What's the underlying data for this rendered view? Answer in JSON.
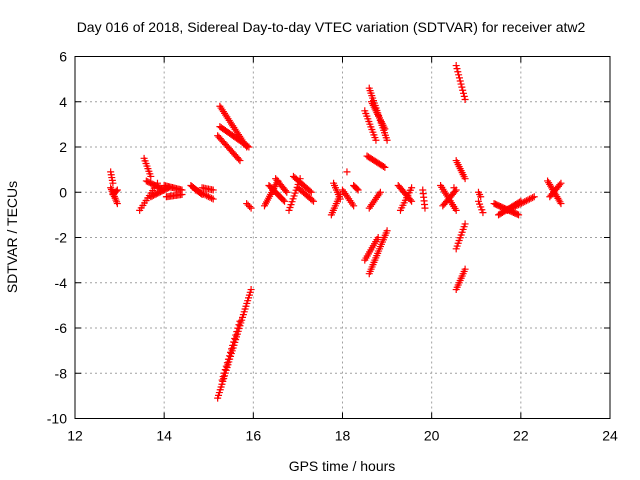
{
  "chart_data": {
    "type": "scatter",
    "title": "Day 016 of 2018, Sidereal Day-to-day VTEC variation (SDTVAR) for receiver atw2",
    "xlabel": "GPS time / hours",
    "ylabel": "SDTVAR / TECUs",
    "xlim": [
      12,
      24
    ],
    "ylim": [
      -10,
      6
    ],
    "xticks": [
      12,
      14,
      16,
      18,
      20,
      22,
      24
    ],
    "yticks": [
      -10,
      -8,
      -6,
      -4,
      -2,
      0,
      2,
      4,
      6
    ],
    "xtick_labels": [
      "12",
      "14",
      "16",
      "18",
      "20",
      "22",
      "24"
    ],
    "ytick_labels": [
      "-10",
      "-8",
      "-6",
      "-4",
      "-2",
      "0",
      "2",
      "4",
      "6"
    ],
    "grid": true,
    "marker": "+",
    "color": "#ff0000",
    "series": [
      {
        "name": "SDTVAR",
        "segments": [
          {
            "x0": 12.8,
            "y0": 0.9,
            "x1": 12.85,
            "y1": 0.4,
            "n": 5
          },
          {
            "x0": 12.8,
            "y0": 0.2,
            "x1": 12.95,
            "y1": -0.5,
            "n": 10
          },
          {
            "x0": 12.85,
            "y0": -0.1,
            "x1": 12.95,
            "y1": 0.1,
            "n": 5
          },
          {
            "x0": 13.55,
            "y0": 1.5,
            "x1": 13.7,
            "y1": 0.7,
            "n": 8
          },
          {
            "x0": 13.45,
            "y0": -0.8,
            "x1": 13.85,
            "y1": 0.4,
            "n": 12
          },
          {
            "x0": 13.6,
            "y0": 0.5,
            "x1": 14.0,
            "y1": 0.1,
            "n": 14
          },
          {
            "x0": 13.7,
            "y0": -0.2,
            "x1": 14.1,
            "y1": 0.2,
            "n": 14
          },
          {
            "x0": 14.0,
            "y0": 0.3,
            "x1": 14.4,
            "y1": 0.1,
            "n": 14
          },
          {
            "x0": 14.05,
            "y0": -0.2,
            "x1": 14.4,
            "y1": -0.1,
            "n": 12
          },
          {
            "x0": 14.6,
            "y0": 0.3,
            "x1": 14.85,
            "y1": -0.1,
            "n": 10
          },
          {
            "x0": 14.7,
            "y0": 0.1,
            "x1": 15.1,
            "y1": -0.3,
            "n": 12
          },
          {
            "x0": 14.85,
            "y0": 0.2,
            "x1": 15.1,
            "y1": 0.1,
            "n": 8
          },
          {
            "x0": 15.25,
            "y0": 3.8,
            "x1": 15.85,
            "y1": 2.0,
            "n": 24
          },
          {
            "x0": 15.25,
            "y0": 2.9,
            "x1": 15.9,
            "y1": 2.0,
            "n": 22
          },
          {
            "x0": 15.2,
            "y0": 2.5,
            "x1": 15.7,
            "y1": 1.4,
            "n": 18
          },
          {
            "x0": 15.85,
            "y0": -0.5,
            "x1": 15.95,
            "y1": -0.7,
            "n": 4
          },
          {
            "x0": 15.2,
            "y0": -9.1,
            "x1": 15.95,
            "y1": -4.3,
            "n": 40
          },
          {
            "x0": 15.3,
            "y0": -8.3,
            "x1": 15.7,
            "y1": -5.7,
            "n": 18
          },
          {
            "x0": 16.25,
            "y0": -0.6,
            "x1": 16.55,
            "y1": 0.5,
            "n": 14
          },
          {
            "x0": 16.35,
            "y0": 0.3,
            "x1": 16.7,
            "y1": -0.4,
            "n": 14
          },
          {
            "x0": 16.5,
            "y0": 0.6,
            "x1": 16.75,
            "y1": 0.0,
            "n": 10
          },
          {
            "x0": 16.8,
            "y0": -0.8,
            "x1": 17.05,
            "y1": 0.6,
            "n": 12
          },
          {
            "x0": 16.9,
            "y0": 0.7,
            "x1": 17.3,
            "y1": 0.0,
            "n": 14
          },
          {
            "x0": 17.0,
            "y0": 0.2,
            "x1": 17.35,
            "y1": -0.4,
            "n": 12
          },
          {
            "x0": 17.75,
            "y0": -1.0,
            "x1": 17.95,
            "y1": -0.1,
            "n": 10
          },
          {
            "x0": 17.8,
            "y0": 0.4,
            "x1": 17.95,
            "y1": -0.3,
            "n": 8
          },
          {
            "x0": 18.0,
            "y0": 0.1,
            "x1": 18.25,
            "y1": -0.6,
            "n": 10
          },
          {
            "x0": 18.1,
            "y0": 0.9,
            "x1": 18.12,
            "y1": 0.9,
            "n": 1
          },
          {
            "x0": 18.25,
            "y0": 0.3,
            "x1": 18.35,
            "y1": 0.1,
            "n": 5
          },
          {
            "x0": 18.5,
            "y0": 3.6,
            "x1": 18.75,
            "y1": 2.3,
            "n": 12
          },
          {
            "x0": 18.6,
            "y0": 4.6,
            "x1": 19.0,
            "y1": 2.3,
            "n": 22
          },
          {
            "x0": 18.65,
            "y0": 4.0,
            "x1": 18.95,
            "y1": 2.8,
            "n": 16
          },
          {
            "x0": 18.55,
            "y0": 1.6,
            "x1": 18.95,
            "y1": 1.1,
            "n": 14
          },
          {
            "x0": 18.5,
            "y0": -3.0,
            "x1": 18.8,
            "y1": -2.0,
            "n": 12
          },
          {
            "x0": 18.6,
            "y0": -3.6,
            "x1": 19.0,
            "y1": -1.7,
            "n": 20
          },
          {
            "x0": 18.6,
            "y0": -0.7,
            "x1": 18.85,
            "y1": 0.0,
            "n": 10
          },
          {
            "x0": 19.25,
            "y0": 0.3,
            "x1": 19.55,
            "y1": -0.4,
            "n": 12
          },
          {
            "x0": 19.3,
            "y0": -0.8,
            "x1": 19.55,
            "y1": 0.2,
            "n": 10
          },
          {
            "x0": 19.8,
            "y0": 0.1,
            "x1": 19.85,
            "y1": -0.7,
            "n": 6
          },
          {
            "x0": 20.2,
            "y0": 0.3,
            "x1": 20.55,
            "y1": -0.8,
            "n": 14
          },
          {
            "x0": 20.25,
            "y0": -0.6,
            "x1": 20.55,
            "y1": 0.1,
            "n": 12
          },
          {
            "x0": 20.5,
            "y0": 0.2,
            "x1": 20.52,
            "y1": 0.2,
            "n": 1
          },
          {
            "x0": 20.55,
            "y0": 5.6,
            "x1": 20.75,
            "y1": 4.1,
            "n": 12
          },
          {
            "x0": 20.55,
            "y0": 1.4,
            "x1": 20.75,
            "y1": 0.6,
            "n": 10
          },
          {
            "x0": 20.55,
            "y0": -2.5,
            "x1": 20.75,
            "y1": -1.4,
            "n": 10
          },
          {
            "x0": 20.55,
            "y0": -4.3,
            "x1": 20.75,
            "y1": -3.4,
            "n": 10
          },
          {
            "x0": 21.05,
            "y0": -0.4,
            "x1": 21.15,
            "y1": -0.9,
            "n": 5
          },
          {
            "x0": 21.05,
            "y0": 0.0,
            "x1": 21.1,
            "y1": -0.2,
            "n": 3
          },
          {
            "x0": 21.4,
            "y0": -0.5,
            "x1": 21.95,
            "y1": -1.0,
            "n": 20
          },
          {
            "x0": 21.5,
            "y0": -1.0,
            "x1": 22.0,
            "y1": -0.4,
            "n": 18
          },
          {
            "x0": 21.7,
            "y0": -0.8,
            "x1": 22.3,
            "y1": -0.2,
            "n": 18
          },
          {
            "x0": 22.6,
            "y0": 0.5,
            "x1": 22.9,
            "y1": -0.5,
            "n": 14
          },
          {
            "x0": 22.65,
            "y0": -0.2,
            "x1": 22.9,
            "y1": 0.4,
            "n": 10
          }
        ]
      }
    ]
  }
}
